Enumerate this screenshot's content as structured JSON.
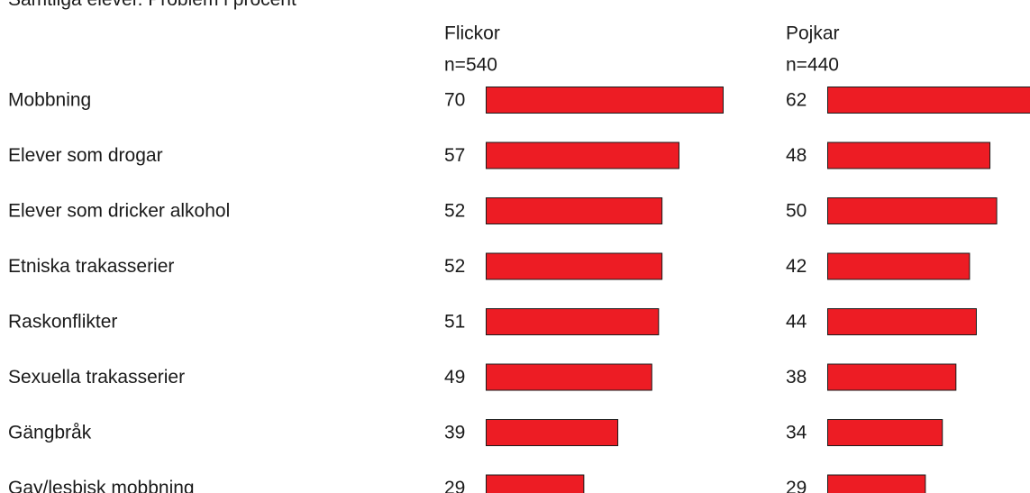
{
  "chart_data": {
    "type": "bar",
    "orientation": "horizontal",
    "title": "Samtliga elever. Problem i procent",
    "categories": [
      "Mobbning",
      "Elever som drogar",
      "Elever som dricker alkohol",
      "Etniska trakasserier",
      "Raskonflikter",
      "Sexuella trakasserier",
      "Gängbråk",
      "Gay/lesbisk mobbning"
    ],
    "series": [
      {
        "name": "Flickor",
        "subtitle": "n=540",
        "values": [
          70,
          57,
          52,
          52,
          51,
          49,
          39,
          29
        ]
      },
      {
        "name": "Pojkar",
        "subtitle": "n=440",
        "values": [
          62,
          48,
          50,
          42,
          44,
          38,
          34,
          29
        ]
      }
    ],
    "xlim": [
      0,
      70
    ],
    "bar_color": "#ed1c24",
    "bar_outline_color": "#1a1a1a",
    "grid": false,
    "legend": "none"
  }
}
